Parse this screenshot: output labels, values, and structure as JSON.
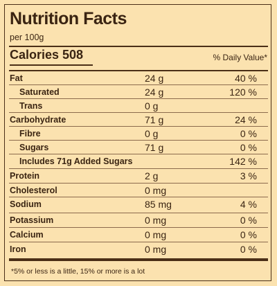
{
  "label": {
    "title": "Nutrition Facts",
    "serving": "per 100g",
    "calories": "Calories 508",
    "dv_header": "% Daily Value*",
    "rows": [
      {
        "name": "Fat",
        "amount": "24 g",
        "dv": "40 %",
        "sub": false
      },
      {
        "name": "Saturated",
        "amount": "24 g",
        "dv": "120 %",
        "sub": true
      },
      {
        "name": "Trans",
        "amount": "0 g",
        "dv": "",
        "sub": true
      },
      {
        "name": "Carbohydrate",
        "amount": "71 g",
        "dv": "24 %",
        "sub": false
      },
      {
        "name": "Fibre",
        "amount": "0 g",
        "dv": "0 %",
        "sub": true
      },
      {
        "name": "Sugars",
        "amount": "71 g",
        "dv": "0 %",
        "sub": true
      },
      {
        "name": "Includes 71g Added Sugars",
        "amount": "",
        "dv": "142 %",
        "sub": true
      },
      {
        "name": "Protein",
        "amount": "2 g",
        "dv": "3 %",
        "sub": false
      },
      {
        "name": "Cholesterol",
        "amount": "0 mg",
        "dv": "",
        "sub": false
      },
      {
        "name": "Sodium",
        "amount": "85 mg",
        "dv": "4 %",
        "sub": false
      },
      {
        "name": "Potassium",
        "amount": "0 mg",
        "dv": "0 %",
        "sub": false
      },
      {
        "name": "Calcium",
        "amount": "0 mg",
        "dv": "0 %",
        "sub": false
      },
      {
        "name": "Iron",
        "amount": "0 mg",
        "dv": "0 %",
        "sub": false
      }
    ],
    "footnote": "*5% or less is a little, 15% or more is a lot"
  }
}
